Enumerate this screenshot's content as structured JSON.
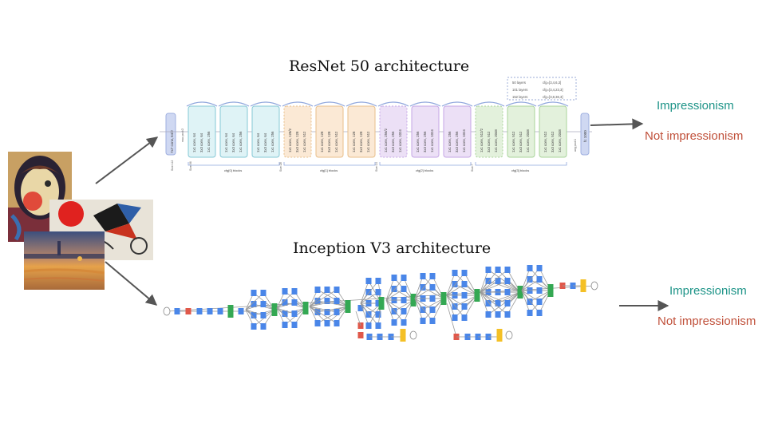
{
  "resnet": {
    "title": "ResNet 50 architecture",
    "outputs": {
      "positive": "Impressionism",
      "negative": "Not impressionism"
    },
    "stem": {
      "conv": "7x7 conv, 64/2",
      "pool": "max pool/2",
      "size_in": "Size:112",
      "size_56": "Size:56"
    },
    "stages": [
      {
        "label": "cfg[0] blocks",
        "blocks": [
          [
            "1x1 conv, 64",
            "3x3 conv, 64",
            "1x1 conv, 256"
          ],
          [
            "1x1 conv, 64",
            "3x3 conv, 64",
            "1x1 conv, 256"
          ],
          [
            "1x1 conv, 64",
            "3x3 conv, 64",
            "1x1 conv, 256"
          ]
        ]
      },
      {
        "label": "cfg[1] blocks",
        "size": "Size:28",
        "blocks": [
          [
            "1x1 conv, 128/2",
            "3x3 conv, 128",
            "1x1 conv, 512"
          ],
          [
            "1x1 conv, 128",
            "3x3 conv, 128",
            "1x1 conv, 512"
          ],
          [
            "1x1 conv, 128",
            "3x3 conv, 128",
            "1x1 conv, 512"
          ]
        ]
      },
      {
        "label": "cfg[2] blocks",
        "size": "Size:14",
        "blocks": [
          [
            "1x1 conv, 256/2",
            "3x3 conv, 256",
            "1x1 conv, 1024"
          ],
          [
            "1x1 conv, 256",
            "3x3 conv, 256",
            "1x1 conv, 1024"
          ],
          [
            "1x1 conv, 256",
            "3x3 conv, 256",
            "1x1 conv, 1024"
          ]
        ]
      },
      {
        "label": "cfg[3] blocks",
        "size": "Size:7",
        "blocks": [
          [
            "1x1 conv, 512/2",
            "3x3 conv, 512",
            "1x1 conv, 2048"
          ],
          [
            "1x1 conv, 512",
            "3x3 conv, 512",
            "1x1 conv, 2048"
          ],
          [
            "1x1 conv, 512",
            "3x3 conv, 512",
            "1x1 conv, 2048"
          ]
        ]
      }
    ],
    "head": {
      "pool": "avg pool/1",
      "fc": "fc 1000"
    },
    "config_table": [
      [
        "50 layers",
        "cfg=[3,4,6,3]"
      ],
      [
        "101 layers",
        "cfg=[3,4,23,3]"
      ],
      [
        "152 layers",
        "cfg=[3,8,36,3]"
      ]
    ]
  },
  "inception": {
    "title": "Inception V3 architecture",
    "outputs": {
      "positive": "Impressionism",
      "negative": "Not impressionism"
    }
  },
  "colors": {
    "positive": "#1e9488",
    "negative": "#c0503a",
    "conv": "#4a86e8",
    "pool": "#e0584a",
    "concat": "#34a853",
    "output": "#f4c026"
  }
}
